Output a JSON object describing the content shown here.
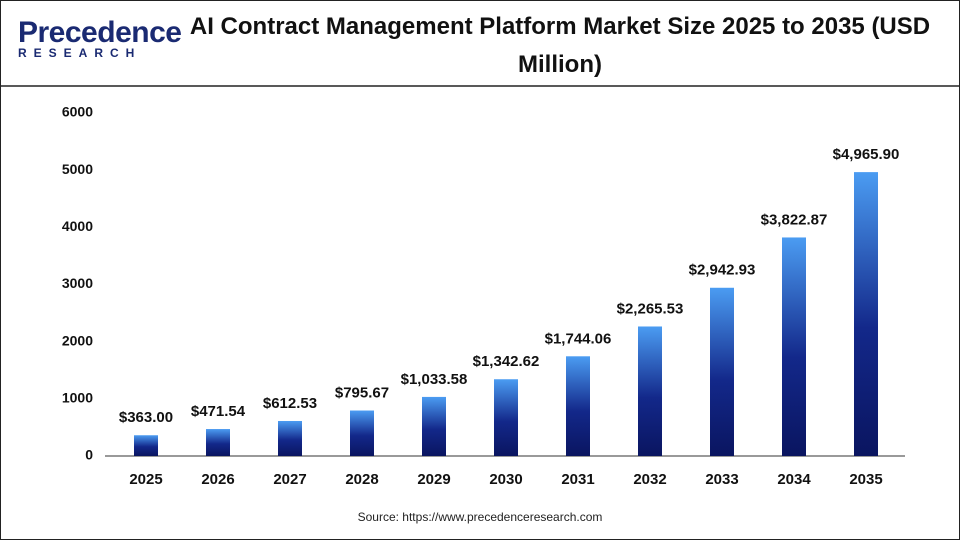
{
  "logo": {
    "name": "Precedence",
    "tagline": "RESEARCH"
  },
  "chart_data": {
    "type": "bar",
    "title": "AI Contract Management Platform Market Size 2025 to 2035 (USD Million)",
    "categories": [
      "2025",
      "2026",
      "2027",
      "2028",
      "2029",
      "2030",
      "2031",
      "2032",
      "2033",
      "2034",
      "2035"
    ],
    "values": [
      363.0,
      471.54,
      612.53,
      795.67,
      1033.58,
      1342.62,
      1744.06,
      2265.53,
      2942.93,
      3822.87,
      4965.9
    ],
    "value_labels": [
      "$363.00",
      "$471.54",
      "$612.53",
      "$795.67",
      "$1,033.58",
      "$1,342.62",
      "$1,744.06",
      "$2,265.53",
      "$2,942.93",
      "$3,822.87",
      "$4,965.90"
    ],
    "gradient": [
      "#4b9cf2",
      "#13288a",
      "#0a1560"
    ],
    "ylim": [
      0,
      6000
    ],
    "yticks": [
      0,
      1000,
      2000,
      3000,
      4000,
      5000,
      6000
    ],
    "grid": false,
    "source": "Source: https://www.precedenceresearch.com"
  }
}
